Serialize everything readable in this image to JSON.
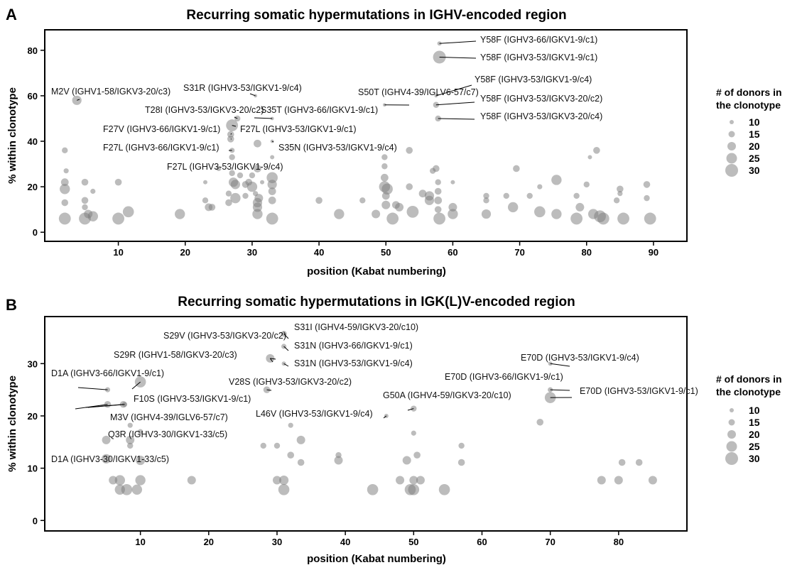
{
  "chart_data": [
    {
      "panel": "A",
      "type": "scatter",
      "title": "Recurring somatic hypermutations in IGHV-encoded region",
      "xlabel": "position (Kabat numbering)",
      "ylabel": "% within clonotype",
      "xlim": [
        -1,
        95
      ],
      "ylim": [
        -4,
        89
      ],
      "xticks": [
        10,
        20,
        30,
        40,
        50,
        60,
        70,
        80,
        90
      ],
      "yticks": [
        0,
        20,
        40,
        60,
        80
      ],
      "grid": false,
      "legend": {
        "title_lines": [
          "# of donors in",
          "the clonotype"
        ],
        "sizes": [
          10,
          15,
          20,
          25,
          30
        ],
        "placement": "right"
      },
      "points": [
        {
          "x": 58.0,
          "y": 83,
          "d": 10
        },
        {
          "x": 58.0,
          "y": 77,
          "d": 30
        },
        {
          "x": 57.5,
          "y": 60,
          "d": 8
        },
        {
          "x": 57.5,
          "y": 56,
          "d": 14
        },
        {
          "x": 57.8,
          "y": 50,
          "d": 14
        },
        {
          "x": 3.8,
          "y": 58,
          "d": 22
        },
        {
          "x": 30.5,
          "y": 60,
          "d": 8
        },
        {
          "x": 27.8,
          "y": 50,
          "d": 14
        },
        {
          "x": 33.0,
          "y": 50,
          "d": 8
        },
        {
          "x": 49.8,
          "y": 56,
          "d": 8
        },
        {
          "x": 27.0,
          "y": 47,
          "d": 28
        },
        {
          "x": 26.8,
          "y": 43,
          "d": 16
        },
        {
          "x": 26.8,
          "y": 41,
          "d": 16
        },
        {
          "x": 33.0,
          "y": 40,
          "d": 8
        },
        {
          "x": 30.8,
          "y": 39,
          "d": 18
        },
        {
          "x": 2.0,
          "y": 36,
          "d": 14
        },
        {
          "x": 2.2,
          "y": 27,
          "d": 12
        },
        {
          "x": 2.0,
          "y": 22,
          "d": 18
        },
        {
          "x": 2.0,
          "y": 19,
          "d": 24
        },
        {
          "x": 2.0,
          "y": 13,
          "d": 16
        },
        {
          "x": 2.0,
          "y": 6,
          "d": 28
        },
        {
          "x": 5.0,
          "y": 22,
          "d": 16
        },
        {
          "x": 5.0,
          "y": 14,
          "d": 16
        },
        {
          "x": 5.0,
          "y": 11,
          "d": 14
        },
        {
          "x": 5.5,
          "y": 8,
          "d": 20
        },
        {
          "x": 5.0,
          "y": 6,
          "d": 28
        },
        {
          "x": 6.2,
          "y": 18,
          "d": 12
        },
        {
          "x": 6.2,
          "y": 7,
          "d": 24
        },
        {
          "x": 10.0,
          "y": 22,
          "d": 16
        },
        {
          "x": 10.0,
          "y": 6,
          "d": 28
        },
        {
          "x": 11.5,
          "y": 9,
          "d": 26
        },
        {
          "x": 19.2,
          "y": 8,
          "d": 24
        },
        {
          "x": 23.0,
          "y": 22,
          "d": 10
        },
        {
          "x": 23.0,
          "y": 14,
          "d": 14
        },
        {
          "x": 23.5,
          "y": 11,
          "d": 18
        },
        {
          "x": 24.0,
          "y": 11,
          "d": 16
        },
        {
          "x": 25.0,
          "y": 28,
          "d": 12
        },
        {
          "x": 26.5,
          "y": 13,
          "d": 16
        },
        {
          "x": 26.5,
          "y": 17,
          "d": 14
        },
        {
          "x": 27.0,
          "y": 33,
          "d": 14
        },
        {
          "x": 27.0,
          "y": 36,
          "d": 12
        },
        {
          "x": 27.0,
          "y": 26,
          "d": 14
        },
        {
          "x": 27.2,
          "y": 22,
          "d": 22
        },
        {
          "x": 27.5,
          "y": 21,
          "d": 22
        },
        {
          "x": 27.5,
          "y": 15,
          "d": 24
        },
        {
          "x": 28.2,
          "y": 25,
          "d": 14
        },
        {
          "x": 29.0,
          "y": 21,
          "d": 16
        },
        {
          "x": 29.0,
          "y": 16,
          "d": 14
        },
        {
          "x": 29.5,
          "y": 22,
          "d": 16
        },
        {
          "x": 30.0,
          "y": 25,
          "d": 14
        },
        {
          "x": 30.0,
          "y": 20,
          "d": 24
        },
        {
          "x": 30.5,
          "y": 17,
          "d": 12
        },
        {
          "x": 30.8,
          "y": 28,
          "d": 18
        },
        {
          "x": 30.8,
          "y": 13,
          "d": 22
        },
        {
          "x": 30.8,
          "y": 11,
          "d": 22
        },
        {
          "x": 31.0,
          "y": 15,
          "d": 20
        },
        {
          "x": 30.8,
          "y": 8,
          "d": 24
        },
        {
          "x": 31.5,
          "y": 22,
          "d": 10
        },
        {
          "x": 33.0,
          "y": 33,
          "d": 10
        },
        {
          "x": 33.0,
          "y": 24,
          "d": 26
        },
        {
          "x": 33.0,
          "y": 21,
          "d": 22
        },
        {
          "x": 33.0,
          "y": 18,
          "d": 18
        },
        {
          "x": 33.0,
          "y": 14,
          "d": 18
        },
        {
          "x": 33.0,
          "y": 6,
          "d": 28
        },
        {
          "x": 40.0,
          "y": 14,
          "d": 16
        },
        {
          "x": 43.0,
          "y": 8,
          "d": 24
        },
        {
          "x": 46.5,
          "y": 14,
          "d": 14
        },
        {
          "x": 48.5,
          "y": 8,
          "d": 20
        },
        {
          "x": 49.8,
          "y": 33,
          "d": 14
        },
        {
          "x": 49.8,
          "y": 29,
          "d": 14
        },
        {
          "x": 49.8,
          "y": 24,
          "d": 18
        },
        {
          "x": 49.8,
          "y": 20,
          "d": 26
        },
        {
          "x": 50.2,
          "y": 19,
          "d": 26
        },
        {
          "x": 50.0,
          "y": 16,
          "d": 18
        },
        {
          "x": 50.0,
          "y": 12,
          "d": 20
        },
        {
          "x": 51.0,
          "y": 6,
          "d": 28
        },
        {
          "x": 51.5,
          "y": 12,
          "d": 18
        },
        {
          "x": 52.0,
          "y": 11,
          "d": 20
        },
        {
          "x": 53.5,
          "y": 36,
          "d": 16
        },
        {
          "x": 53.5,
          "y": 20,
          "d": 16
        },
        {
          "x": 54.0,
          "y": 9,
          "d": 28
        },
        {
          "x": 55.5,
          "y": 17,
          "d": 18
        },
        {
          "x": 56.5,
          "y": 16,
          "d": 22
        },
        {
          "x": 56.5,
          "y": 14,
          "d": 22
        },
        {
          "x": 57.0,
          "y": 27,
          "d": 14
        },
        {
          "x": 57.5,
          "y": 28,
          "d": 16
        },
        {
          "x": 57.8,
          "y": 22,
          "d": 14
        },
        {
          "x": 57.8,
          "y": 18,
          "d": 16
        },
        {
          "x": 57.8,
          "y": 14,
          "d": 18
        },
        {
          "x": 57.8,
          "y": 10,
          "d": 16
        },
        {
          "x": 58.0,
          "y": 6,
          "d": 28
        },
        {
          "x": 60.0,
          "y": 22,
          "d": 10
        },
        {
          "x": 60.0,
          "y": 11,
          "d": 20
        },
        {
          "x": 60.0,
          "y": 8,
          "d": 24
        },
        {
          "x": 65.0,
          "y": 16,
          "d": 14
        },
        {
          "x": 65.0,
          "y": 14,
          "d": 14
        },
        {
          "x": 65.0,
          "y": 8,
          "d": 22
        },
        {
          "x": 68.0,
          "y": 16,
          "d": 14
        },
        {
          "x": 69.5,
          "y": 28,
          "d": 16
        },
        {
          "x": 69.0,
          "y": 11,
          "d": 24
        },
        {
          "x": 71.5,
          "y": 16,
          "d": 14
        },
        {
          "x": 73.0,
          "y": 20,
          "d": 12
        },
        {
          "x": 73.0,
          "y": 9,
          "d": 26
        },
        {
          "x": 75.5,
          "y": 23,
          "d": 24
        },
        {
          "x": 75.5,
          "y": 8,
          "d": 24
        },
        {
          "x": 78.5,
          "y": 16,
          "d": 14
        },
        {
          "x": 78.5,
          "y": 6,
          "d": 28
        },
        {
          "x": 79.0,
          "y": 11,
          "d": 20
        },
        {
          "x": 80.0,
          "y": 21,
          "d": 14
        },
        {
          "x": 80.5,
          "y": 33,
          "d": 10
        },
        {
          "x": 81.5,
          "y": 36,
          "d": 16
        },
        {
          "x": 81.0,
          "y": 8,
          "d": 24
        },
        {
          "x": 82.0,
          "y": 7,
          "d": 28
        },
        {
          "x": 82.5,
          "y": 6,
          "d": 28
        },
        {
          "x": 84.5,
          "y": 14,
          "d": 14
        },
        {
          "x": 85.0,
          "y": 19,
          "d": 16
        },
        {
          "x": 85.0,
          "y": 17,
          "d": 12
        },
        {
          "x": 85.5,
          "y": 6,
          "d": 28
        },
        {
          "x": 89.0,
          "y": 21,
          "d": 16
        },
        {
          "x": 89.0,
          "y": 15,
          "d": 14
        },
        {
          "x": 89.5,
          "y": 6,
          "d": 28
        }
      ],
      "annotations": [
        {
          "text": "Y58F (IGHV3-66/IGKV1-9/c1)",
          "x": 58.0,
          "y": 83
        },
        {
          "text": "Y58F (IGHV3-53/IGKV1-9/c1)",
          "x": 58.0,
          "y": 77
        },
        {
          "text": "Y58F (IGHV3-53/IGKV1-9/c4)",
          "x": 57.5,
          "y": 60
        },
        {
          "text": "Y58F (IGHV3-53/IGKV3-20/c2)",
          "x": 57.5,
          "y": 56
        },
        {
          "text": "Y58F (IGHV3-53/IGKV3-20/c4)",
          "x": 57.8,
          "y": 50
        },
        {
          "text": "M2V (IGHV1-58/IGKV3-20/c3)",
          "x": 3.8,
          "y": 58
        },
        {
          "text": "S31R (IGHV3-53/IGKV1-9/c4)",
          "x": 30.5,
          "y": 60
        },
        {
          "text": "S50T (IGHV4-39/IGLV6-57/c7)",
          "x": 49.8,
          "y": 56
        },
        {
          "text": "T28I (IGHV3-53/IGKV3-20/c2)",
          "x": 27.8,
          "y": 50
        },
        {
          "text": "S35T (IGHV3-66/IGKV1-9/c1)",
          "x": 33.0,
          "y": 50
        },
        {
          "text": "F27V (IGHV3-66/IGKV1-9/c1)",
          "x": 26.8,
          "y": 43
        },
        {
          "text": "F27L (IGHV3-53/IGKV1-9/c1)",
          "x": 27.0,
          "y": 47
        },
        {
          "text": "F27L (IGHV3-66/IGKV1-9/c1)",
          "x": 26.8,
          "y": 41
        },
        {
          "text": "S35N (IGHV3-53/IGKV1-9/c4)",
          "x": 33.0,
          "y": 40
        },
        {
          "text": "F27L (IGHV3-53/IGKV1-9/c4)",
          "x": 27.0,
          "y": 36
        }
      ]
    },
    {
      "panel": "B",
      "type": "scatter",
      "title": "Recurring somatic hypermutations in IGK(L)V-encoded region",
      "xlabel": "position (Kabat numbering)",
      "ylabel": "% within clonotype",
      "xlim": [
        -4,
        90
      ],
      "ylim": [
        -2,
        39
      ],
      "xticks": [
        10,
        20,
        30,
        40,
        50,
        60,
        70,
        80
      ],
      "yticks": [
        0,
        10,
        20,
        30
      ],
      "grid": false,
      "legend": {
        "title_lines": [
          "# of donors in",
          "the clonotype"
        ],
        "sizes": [
          10,
          15,
          20,
          25,
          30
        ],
        "placement": "right"
      },
      "points": [
        {
          "x": 31.0,
          "y": 35.7,
          "d": 14
        },
        {
          "x": 31.0,
          "y": 33.3,
          "d": 12
        },
        {
          "x": 29.0,
          "y": 31.0,
          "d": 20
        },
        {
          "x": 31.0,
          "y": 30.0,
          "d": 10
        },
        {
          "x": 28.5,
          "y": 25.0,
          "d": 16
        },
        {
          "x": 10.0,
          "y": 26.5,
          "d": 26
        },
        {
          "x": 5.2,
          "y": 25.0,
          "d": 12
        },
        {
          "x": 5.2,
          "y": 22.2,
          "d": 16
        },
        {
          "x": 7.5,
          "y": 22.2,
          "d": 16
        },
        {
          "x": 7.7,
          "y": 22.2,
          "d": 12
        },
        {
          "x": 46.0,
          "y": 20.0,
          "d": 10
        },
        {
          "x": 50.0,
          "y": 21.4,
          "d": 14
        },
        {
          "x": 70.0,
          "y": 30.0,
          "d": 10
        },
        {
          "x": 70.0,
          "y": 25.0,
          "d": 12
        },
        {
          "x": 70.0,
          "y": 23.5,
          "d": 26
        },
        {
          "x": 68.5,
          "y": 18.8,
          "d": 16
        },
        {
          "x": 32.0,
          "y": 18.2,
          "d": 12
        },
        {
          "x": 8.5,
          "y": 18.2,
          "d": 12
        },
        {
          "x": 10.0,
          "y": 17.0,
          "d": 12
        },
        {
          "x": 50.0,
          "y": 16.7,
          "d": 12
        },
        {
          "x": 5.0,
          "y": 15.4,
          "d": 20
        },
        {
          "x": 8.5,
          "y": 15.4,
          "d": 20
        },
        {
          "x": 8.5,
          "y": 14.3,
          "d": 14
        },
        {
          "x": 28.0,
          "y": 14.3,
          "d": 14
        },
        {
          "x": 30.0,
          "y": 14.3,
          "d": 14
        },
        {
          "x": 33.5,
          "y": 15.4,
          "d": 20
        },
        {
          "x": 57.0,
          "y": 14.3,
          "d": 14
        },
        {
          "x": 32.0,
          "y": 12.5,
          "d": 16
        },
        {
          "x": 39.0,
          "y": 12.5,
          "d": 14
        },
        {
          "x": 50.5,
          "y": 12.5,
          "d": 16
        },
        {
          "x": 5.0,
          "y": 11.8,
          "d": 22
        },
        {
          "x": 10.0,
          "y": 11.5,
          "d": 22
        },
        {
          "x": 33.5,
          "y": 11.1,
          "d": 16
        },
        {
          "x": 39.0,
          "y": 11.5,
          "d": 20
        },
        {
          "x": 49.0,
          "y": 11.5,
          "d": 20
        },
        {
          "x": 57.0,
          "y": 11.1,
          "d": 16
        },
        {
          "x": 80.5,
          "y": 11.1,
          "d": 16
        },
        {
          "x": 83.0,
          "y": 11.1,
          "d": 16
        },
        {
          "x": 6.0,
          "y": 7.7,
          "d": 20
        },
        {
          "x": 7.0,
          "y": 7.7,
          "d": 24
        },
        {
          "x": 10.0,
          "y": 7.7,
          "d": 24
        },
        {
          "x": 17.5,
          "y": 7.7,
          "d": 20
        },
        {
          "x": 30.0,
          "y": 7.7,
          "d": 20
        },
        {
          "x": 31.0,
          "y": 7.7,
          "d": 22
        },
        {
          "x": 48.0,
          "y": 7.7,
          "d": 20
        },
        {
          "x": 50.0,
          "y": 7.7,
          "d": 20
        },
        {
          "x": 51.0,
          "y": 7.7,
          "d": 20
        },
        {
          "x": 77.5,
          "y": 7.7,
          "d": 20
        },
        {
          "x": 80.0,
          "y": 7.7,
          "d": 20
        },
        {
          "x": 85.0,
          "y": 7.7,
          "d": 20
        },
        {
          "x": 7.0,
          "y": 5.9,
          "d": 24
        },
        {
          "x": 8.0,
          "y": 5.9,
          "d": 26
        },
        {
          "x": 9.5,
          "y": 5.9,
          "d": 24
        },
        {
          "x": 31.0,
          "y": 5.9,
          "d": 26
        },
        {
          "x": 44.0,
          "y": 5.9,
          "d": 26
        },
        {
          "x": 49.5,
          "y": 5.9,
          "d": 26
        },
        {
          "x": 50.0,
          "y": 5.9,
          "d": 26
        },
        {
          "x": 54.5,
          "y": 5.9,
          "d": 26
        }
      ],
      "annotations": [
        {
          "text": "S31I (IGHV4-59/IGKV3-20/c10)",
          "x": 31.0,
          "y": 35.7
        },
        {
          "text": "S31N (IGHV3-66/IGKV1-9/c1)",
          "x": 31.0,
          "y": 33.3
        },
        {
          "text": "S31N (IGHV3-53/IGKV1-9/c4)",
          "x": 31.0,
          "y": 30.0
        },
        {
          "text": "S29V (IGHV3-53/IGKV3-20/c2)",
          "x": 29.0,
          "y": 31.0
        },
        {
          "text": "S29R (IGHV1-58/IGKV3-20/c3)",
          "x": 29.0,
          "y": 31.0
        },
        {
          "text": "V28S (IGHV3-53/IGKV3-20/c2)",
          "x": 28.5,
          "y": 25.0
        },
        {
          "text": "D1A (IGHV3-66/IGKV1-9/c1)",
          "x": 5.2,
          "y": 25.0
        },
        {
          "text": "F10S (IGHV3-53/IGKV1-9/c1)",
          "x": 10.0,
          "y": 26.5
        },
        {
          "text": "M3V (IGHV4-39/IGLV6-57/c7)",
          "x": 7.7,
          "y": 22.2
        },
        {
          "text": "Q3R (IGHV3-30/IGKV1-33/c5)",
          "x": 7.5,
          "y": 22.2
        },
        {
          "text": "D1A (IGHV3-30/IGKV1-33/c5)",
          "x": 5.2,
          "y": 22.2
        },
        {
          "text": "L46V (IGHV3-53/IGKV1-9/c4)",
          "x": 46.0,
          "y": 20.0
        },
        {
          "text": "G50A (IGHV4-59/IGKV3-20/c10)",
          "x": 50.0,
          "y": 21.4
        },
        {
          "text": "E70D (IGHV3-53/IGKV1-9/c4)",
          "x": 70.0,
          "y": 30.0
        },
        {
          "text": "E70D (IGHV3-66/IGKV1-9/c1)",
          "x": 70.0,
          "y": 25.0
        },
        {
          "text": "E70D (IGHV3-53/IGKV1-9/c1)",
          "x": 70.0,
          "y": 23.5
        }
      ]
    }
  ]
}
